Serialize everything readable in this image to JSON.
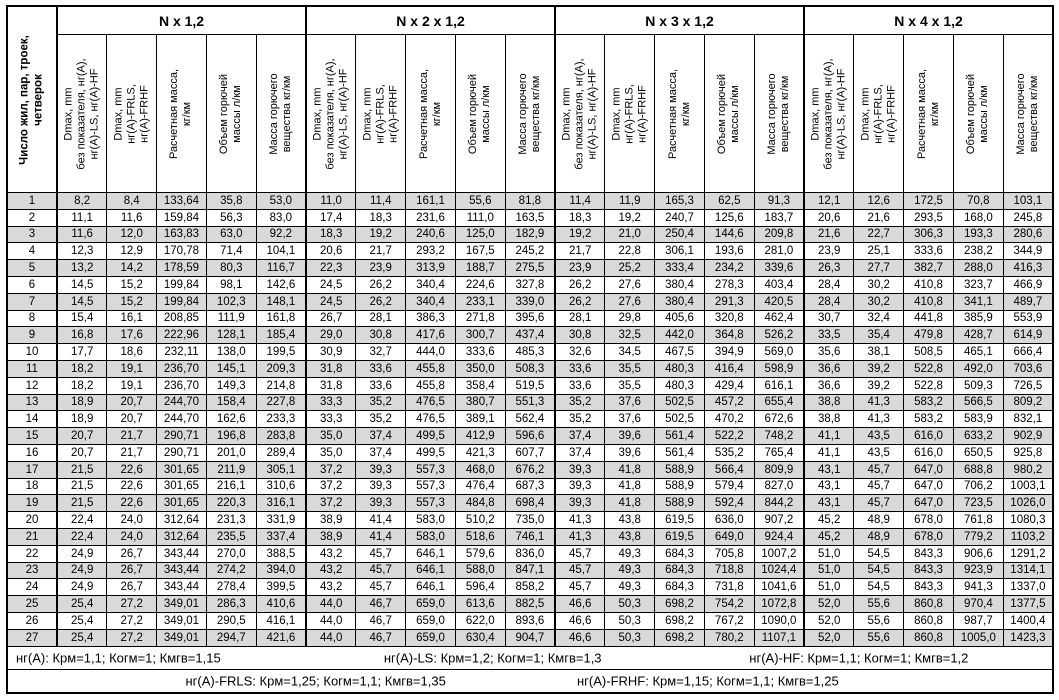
{
  "colors": {
    "stripe_odd": "#d9d9d9",
    "row_even": "#ffffff",
    "border": "#000000",
    "text": "#000000"
  },
  "header": {
    "row_label_column": {
      "lines": [
        "Число жил, пар, троек,",
        "четверок"
      ],
      "full": "Число жил, пар, троек, четверок"
    },
    "groups": [
      {
        "title": "N x 1,2"
      },
      {
        "title": "N x 2 x 1,2"
      },
      {
        "title": "N x 3 x 1,2"
      },
      {
        "title": "N x 4 x 1,2"
      }
    ],
    "sub_columns": [
      {
        "id": "dmax-base",
        "lines": [
          "Dmax, mm",
          "без показателя, нг(А),",
          "нг(А)-LS, нг(А)-HF"
        ],
        "full": "Dmax, mm без показателя, нг(А), нг(А)-LS, нг(А)-HF"
      },
      {
        "id": "dmax-frls-frhf",
        "lines": [
          "Dmax, mm",
          "нг(А)-FRLS,",
          "нг(А)-FRHF"
        ],
        "full": "Dmax, mm нг(А)-FRLS, нг(А)-FRHF"
      },
      {
        "id": "calc-mass",
        "lines": [
          "Расчетная масса,",
          "кг/км"
        ],
        "full": "Расчетная масса, кг/км"
      },
      {
        "id": "combustible-volume",
        "lines": [
          "Объем горючей",
          "массы л/км"
        ],
        "full": "Объем горючей массы л/км"
      },
      {
        "id": "combustible-mass",
        "lines": [
          "Масса горючего",
          "вещества кг/км"
        ],
        "full": "Масса горючего вещества кг/км"
      }
    ]
  },
  "rows": [
    {
      "n": "1",
      "cells": [
        "8,2",
        "8,4",
        "133,64",
        "35,8",
        "53,0",
        "11,0",
        "11,4",
        "161,1",
        "55,6",
        "81,8",
        "11,4",
        "11,9",
        "165,3",
        "62,5",
        "91,3",
        "12,1",
        "12,6",
        "172,5",
        "70,8",
        "103,1"
      ]
    },
    {
      "n": "2",
      "cells": [
        "11,1",
        "11,6",
        "159,84",
        "56,3",
        "83,0",
        "17,4",
        "18,3",
        "231,6",
        "111,0",
        "163,5",
        "18,3",
        "19,2",
        "240,7",
        "125,6",
        "183,7",
        "20,6",
        "21,6",
        "293,5",
        "168,0",
        "245,8"
      ]
    },
    {
      "n": "3",
      "cells": [
        "11,6",
        "12,0",
        "163,83",
        "63,0",
        "92,2",
        "18,3",
        "19,2",
        "240,6",
        "125,0",
        "182,9",
        "19,2",
        "21,0",
        "250,4",
        "144,6",
        "209,8",
        "21,6",
        "22,7",
        "306,3",
        "193,3",
        "280,6"
      ]
    },
    {
      "n": "4",
      "cells": [
        "12,3",
        "12,9",
        "170,78",
        "71,4",
        "104,1",
        "20,6",
        "21,7",
        "293,2",
        "167,5",
        "245,2",
        "21,7",
        "22,8",
        "306,1",
        "193,6",
        "281,0",
        "23,9",
        "25,1",
        "333,6",
        "238,2",
        "344,9"
      ]
    },
    {
      "n": "5",
      "cells": [
        "13,2",
        "14,2",
        "178,59",
        "80,3",
        "116,7",
        "22,3",
        "23,9",
        "313,9",
        "188,7",
        "275,5",
        "23,9",
        "25,2",
        "333,4",
        "234,2",
        "339,6",
        "26,3",
        "27,7",
        "382,7",
        "288,0",
        "416,3"
      ]
    },
    {
      "n": "6",
      "cells": [
        "14,5",
        "15,2",
        "199,84",
        "98,1",
        "142,6",
        "24,5",
        "26,2",
        "340,4",
        "224,6",
        "327,8",
        "26,2",
        "27,6",
        "380,4",
        "278,3",
        "403,4",
        "28,4",
        "30,2",
        "410,8",
        "323,7",
        "466,9"
      ]
    },
    {
      "n": "7",
      "cells": [
        "14,5",
        "15,2",
        "199,84",
        "102,3",
        "148,1",
        "24,5",
        "26,2",
        "340,4",
        "233,1",
        "339,0",
        "26,2",
        "27,6",
        "380,4",
        "291,3",
        "420,5",
        "28,4",
        "30,2",
        "410,8",
        "341,1",
        "489,7"
      ]
    },
    {
      "n": "8",
      "cells": [
        "15,4",
        "16,1",
        "208,85",
        "111,9",
        "161,8",
        "26,7",
        "28,1",
        "386,3",
        "271,8",
        "395,6",
        "28,1",
        "29,8",
        "405,6",
        "320,8",
        "462,4",
        "30,7",
        "32,4",
        "441,8",
        "385,9",
        "553,9"
      ]
    },
    {
      "n": "9",
      "cells": [
        "16,8",
        "17,6",
        "222,96",
        "128,1",
        "185,4",
        "29,0",
        "30,8",
        "417,6",
        "300,7",
        "437,4",
        "30,8",
        "32,5",
        "442,0",
        "364,8",
        "526,2",
        "33,5",
        "35,4",
        "479,8",
        "428,7",
        "614,9"
      ]
    },
    {
      "n": "10",
      "cells": [
        "17,7",
        "18,6",
        "232,11",
        "138,0",
        "199,5",
        "30,9",
        "32,7",
        "444,0",
        "333,6",
        "485,3",
        "32,6",
        "34,5",
        "467,5",
        "394,9",
        "569,0",
        "35,6",
        "38,1",
        "508,5",
        "465,1",
        "666,4"
      ]
    },
    {
      "n": "11",
      "cells": [
        "18,2",
        "19,1",
        "236,70",
        "145,1",
        "209,3",
        "31,8",
        "33,6",
        "455,8",
        "350,0",
        "508,3",
        "33,6",
        "35,5",
        "480,3",
        "416,4",
        "598,9",
        "36,6",
        "39,2",
        "522,8",
        "492,0",
        "703,6"
      ]
    },
    {
      "n": "12",
      "cells": [
        "18,2",
        "19,1",
        "236,70",
        "149,3",
        "214,8",
        "31,8",
        "33,6",
        "455,8",
        "358,4",
        "519,5",
        "33,6",
        "35,5",
        "480,3",
        "429,4",
        "616,1",
        "36,6",
        "39,2",
        "522,8",
        "509,3",
        "726,5"
      ]
    },
    {
      "n": "13",
      "cells": [
        "18,9",
        "20,7",
        "244,70",
        "158,4",
        "227,8",
        "33,3",
        "35,2",
        "476,5",
        "380,7",
        "551,3",
        "35,2",
        "37,6",
        "502,5",
        "457,2",
        "655,4",
        "38,8",
        "41,3",
        "583,2",
        "566,5",
        "809,2"
      ]
    },
    {
      "n": "14",
      "cells": [
        "18,9",
        "20,7",
        "244,70",
        "162,6",
        "233,3",
        "33,3",
        "35,2",
        "476,5",
        "389,1",
        "562,4",
        "35,2",
        "37,6",
        "502,5",
        "470,2",
        "672,6",
        "38,8",
        "41,3",
        "583,2",
        "583,9",
        "832,1"
      ]
    },
    {
      "n": "15",
      "cells": [
        "20,7",
        "21,7",
        "290,71",
        "196,8",
        "283,8",
        "35,0",
        "37,4",
        "499,5",
        "412,9",
        "596,6",
        "37,4",
        "39,6",
        "561,4",
        "522,2",
        "748,2",
        "41,1",
        "43,5",
        "616,0",
        "633,2",
        "902,9"
      ]
    },
    {
      "n": "16",
      "cells": [
        "20,7",
        "21,7",
        "290,71",
        "201,0",
        "289,4",
        "35,0",
        "37,4",
        "499,5",
        "421,3",
        "607,7",
        "37,4",
        "39,6",
        "561,4",
        "535,2",
        "765,4",
        "41,1",
        "43,5",
        "616,0",
        "650,5",
        "925,8"
      ]
    },
    {
      "n": "17",
      "cells": [
        "21,5",
        "22,6",
        "301,65",
        "211,9",
        "305,1",
        "37,2",
        "39,3",
        "557,3",
        "468,0",
        "676,2",
        "39,3",
        "41,8",
        "588,9",
        "566,4",
        "809,9",
        "43,1",
        "45,7",
        "647,0",
        "688,8",
        "980,2"
      ]
    },
    {
      "n": "18",
      "cells": [
        "21,5",
        "22,6",
        "301,65",
        "216,1",
        "310,6",
        "37,2",
        "39,3",
        "557,3",
        "476,4",
        "687,3",
        "39,3",
        "41,8",
        "588,9",
        "579,4",
        "827,0",
        "43,1",
        "45,7",
        "647,0",
        "706,2",
        "1003,1"
      ]
    },
    {
      "n": "19",
      "cells": [
        "21,5",
        "22,6",
        "301,65",
        "220,3",
        "316,1",
        "37,2",
        "39,3",
        "557,3",
        "484,8",
        "698,4",
        "39,3",
        "41,8",
        "588,9",
        "592,4",
        "844,2",
        "43,1",
        "45,7",
        "647,0",
        "723,5",
        "1026,0"
      ]
    },
    {
      "n": "20",
      "cells": [
        "22,4",
        "24,0",
        "312,64",
        "231,3",
        "331,9",
        "38,9",
        "41,4",
        "583,0",
        "510,2",
        "735,0",
        "41,3",
        "43,8",
        "619,5",
        "636,0",
        "907,2",
        "45,2",
        "48,9",
        "678,0",
        "761,8",
        "1080,3"
      ]
    },
    {
      "n": "21",
      "cells": [
        "22,4",
        "24,0",
        "312,64",
        "235,5",
        "337,4",
        "38,9",
        "41,4",
        "583,0",
        "518,6",
        "746,1",
        "41,3",
        "43,8",
        "619,5",
        "649,0",
        "924,4",
        "45,2",
        "48,9",
        "678,0",
        "779,2",
        "1103,2"
      ]
    },
    {
      "n": "22",
      "cells": [
        "24,9",
        "26,7",
        "343,44",
        "270,0",
        "388,5",
        "43,2",
        "45,7",
        "646,1",
        "579,6",
        "836,0",
        "45,7",
        "49,3",
        "684,3",
        "705,8",
        "1007,2",
        "51,0",
        "54,5",
        "843,3",
        "906,6",
        "1291,2"
      ]
    },
    {
      "n": "23",
      "cells": [
        "24,9",
        "26,7",
        "343,44",
        "274,2",
        "394,0",
        "43,2",
        "45,7",
        "646,1",
        "588,0",
        "847,1",
        "45,7",
        "49,3",
        "684,3",
        "718,8",
        "1024,4",
        "51,0",
        "54,5",
        "843,3",
        "923,9",
        "1314,1"
      ]
    },
    {
      "n": "24",
      "cells": [
        "24,9",
        "26,7",
        "343,44",
        "278,4",
        "399,5",
        "43,2",
        "45,7",
        "646,1",
        "596,4",
        "858,2",
        "45,7",
        "49,3",
        "684,3",
        "731,8",
        "1041,6",
        "51,0",
        "54,5",
        "843,3",
        "941,3",
        "1337,0"
      ]
    },
    {
      "n": "25",
      "cells": [
        "25,4",
        "27,2",
        "349,01",
        "286,3",
        "410,6",
        "44,0",
        "46,7",
        "659,0",
        "613,6",
        "882,5",
        "46,6",
        "50,3",
        "698,2",
        "754,2",
        "1072,8",
        "52,0",
        "55,6",
        "860,8",
        "970,4",
        "1377,5"
      ]
    },
    {
      "n": "26",
      "cells": [
        "25,4",
        "27,2",
        "349,01",
        "290,5",
        "416,1",
        "44,0",
        "46,7",
        "659,0",
        "622,0",
        "893,6",
        "46,6",
        "50,3",
        "698,2",
        "767,2",
        "1090,0",
        "52,0",
        "55,6",
        "860,8",
        "987,7",
        "1400,4"
      ]
    },
    {
      "n": "27",
      "cells": [
        "25,4",
        "27,2",
        "349,01",
        "294,7",
        "421,6",
        "44,0",
        "46,7",
        "659,0",
        "630,4",
        "904,7",
        "46,6",
        "50,3",
        "698,2",
        "780,2",
        "1107,1",
        "52,0",
        "55,6",
        "860,8",
        "1005,0",
        "1423,3"
      ]
    }
  ],
  "footer": {
    "line1": [
      "нг(А): Крм=1,1;  Когм=1;  Кмгв=1,15",
      "нг(А)-LS: Крм=1,2;  Когм=1;  Кмгв=1,3",
      "нг(А)-HF: Крм=1,1;  Когм=1;  Кмгв=1,2"
    ],
    "line2": [
      "нг(А)-FRLS: Крм=1,25;  Когм=1,1;  Кмгв=1,35",
      "нг(А)-FRHF: Крм=1,15;  Когм=1,1;  Кмгв=1,25"
    ]
  }
}
